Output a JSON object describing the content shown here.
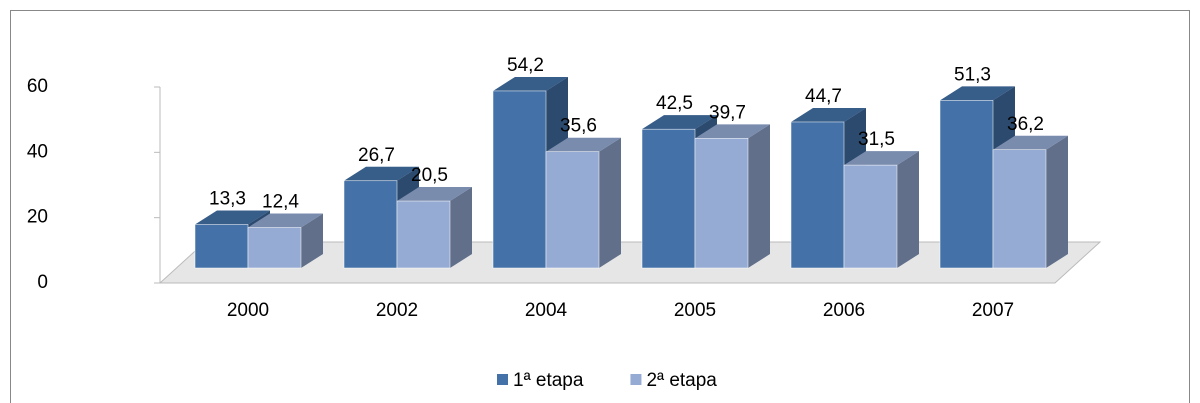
{
  "chart_data": {
    "type": "bar3d",
    "categories": [
      "2000",
      "2002",
      "2004",
      "2005",
      "2006",
      "2007"
    ],
    "series": [
      {
        "name": "1ª etapa",
        "color": "#4472a8",
        "values": [
          13.3,
          26.7,
          54.2,
          42.5,
          44.7,
          51.3
        ],
        "value_labels": [
          "13,3",
          "26,7",
          "54,2",
          "42,5",
          "44,7",
          "51,3"
        ]
      },
      {
        "name": "2ª etapa",
        "color": "#95abd4",
        "values": [
          12.4,
          20.5,
          35.6,
          39.7,
          31.5,
          36.2
        ],
        "value_labels": [
          "12,4",
          "20,5",
          "35,6",
          "39,7",
          "31,5",
          "36,2"
        ]
      }
    ],
    "ylim": [
      0,
      60
    ],
    "yticks": [
      0,
      20,
      40,
      60
    ],
    "legend": "bottom"
  }
}
